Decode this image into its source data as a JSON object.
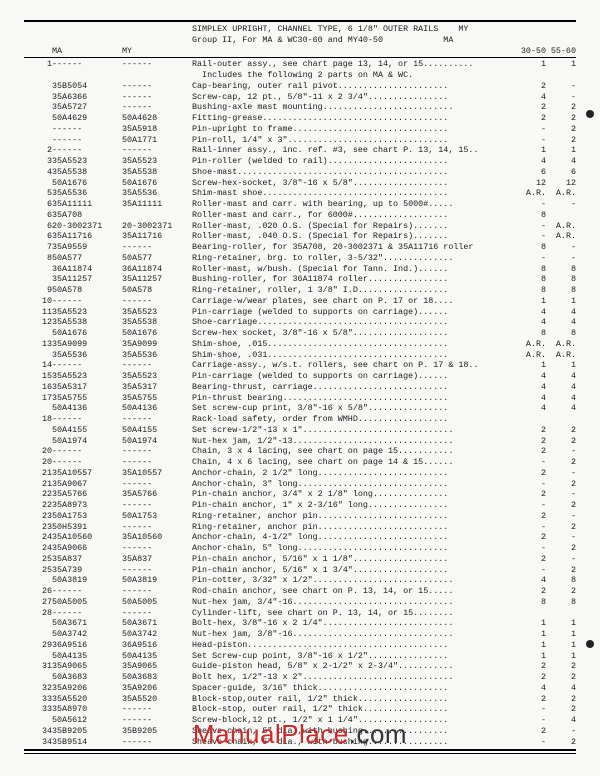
{
  "title_lines": [
    "SIMPLEX UPRIGHT, CHANNEL TYPE, 6 1/8\" OUTER RAILS    MY",
    "Group II, For MA & WC30-60 and MY40-50            MA"
  ],
  "col_header": {
    "ref": "",
    "ma": "MA",
    "my": "MY",
    "desc": "",
    "c1": "MA\n30-50",
    "c2": "MA\n55-60"
  },
  "rows": [
    {
      "ref": "1",
      "ma": "------",
      "my": "------",
      "desc": "Rail-outer assy., see chart page 13, 14, or 15..........",
      "c1": "1",
      "c2": "1"
    },
    {
      "ref": "",
      "ma": "",
      "my": "",
      "desc": "  Includes the following 2 parts on MA & WC.",
      "c1": "",
      "c2": ""
    },
    {
      "ref": "",
      "ma": "35B5054",
      "my": "------",
      "desc": "Cap-bearing, outer rail pivot......................",
      "c1": "2",
      "c2": "-"
    },
    {
      "ref": "",
      "ma": "35A6366",
      "my": "------",
      "desc": "Screw-cap, 12 pt., 5/8\"-11 x 2 3/4\"................",
      "c1": "4",
      "c2": "-"
    },
    {
      "ref": "",
      "ma": "35A5727",
      "my": "------",
      "desc": "Bushing-axle mast mounting..........................",
      "c1": "2",
      "c2": "2"
    },
    {
      "ref": "",
      "ma": "50A4629",
      "my": "50A4628",
      "desc": "Fitting-grease.....................................",
      "c1": "2",
      "c2": "2"
    },
    {
      "ref": "",
      "ma": "------",
      "my": "35A5918",
      "desc": "Pin-upright to frame...............................",
      "c1": "-",
      "c2": "2"
    },
    {
      "ref": "",
      "ma": "------",
      "my": "50A1771",
      "desc": "Pin-roll, 1/4\" x 3\"................................",
      "c1": "-",
      "c2": "2"
    },
    {
      "ref": "2",
      "ma": "------",
      "my": "------",
      "desc": "Rail-inner assy., inc. ref. #3, see chart P. 13, 14, 15..",
      "c1": "1",
      "c2": "1"
    },
    {
      "ref": "3",
      "ma": "35A5523",
      "my": "35A5523",
      "desc": "Pin-roller (welded to rail)........................",
      "c1": "4",
      "c2": "4"
    },
    {
      "ref": "4",
      "ma": "35A5538",
      "my": "35A5538",
      "desc": "Shoe-mast..........................................",
      "c1": "6",
      "c2": "6"
    },
    {
      "ref": "",
      "ma": "50A1676",
      "my": "50A1676",
      "desc": "Screw-hex-socket, 3/8\"-16 x 5/8\"...................",
      "c1": "12",
      "c2": "12"
    },
    {
      "ref": "5",
      "ma": "35A5536",
      "my": "35A5536",
      "desc": "Shim-mast shoe.....................................",
      "c1": "A.R.",
      "c2": "A.R."
    },
    {
      "ref": "6",
      "ma": "35A11111",
      "my": "35A11111",
      "desc": "Roller-mast and carr. with bearing, up to 5000#.....",
      "c1": "-",
      "c2": "-"
    },
    {
      "ref": "6",
      "ma": "35A708",
      "my": "",
      "desc": "Roller-mast and carr., for 6000#...................",
      "c1": "8",
      "c2": ""
    },
    {
      "ref": "6",
      "ma": "20-3002371",
      "my": "20-3002371",
      "desc": "Roller-mast, .020 O.S. (Special for Repairs).......",
      "c1": "-",
      "c2": "A.R."
    },
    {
      "ref": "6",
      "ma": "35A11716",
      "my": "35A11716",
      "desc": "Roller-mast, .040 O.S. (Special for Repairs).......",
      "c1": "-",
      "c2": "A.R."
    },
    {
      "ref": "7",
      "ma": "35A9559",
      "my": "------",
      "desc": "Bearing-roller, for 35A708, 20-3002371 & 35A11716 roller",
      "c1": "8",
      "c2": "-"
    },
    {
      "ref": "8",
      "ma": "50A577",
      "my": "50A577",
      "desc": "Ring-retainer, brg. to roller, 3-5/32\"..............",
      "c1": "-",
      "c2": "-"
    },
    {
      "ref": "",
      "ma": "36A11874",
      "my": "36A11874",
      "desc": "Roller-mast, w/bush. (Special for Tann. Ind.)......",
      "c1": "8",
      "c2": "8"
    },
    {
      "ref": "",
      "ma": "35A11257",
      "my": "35A11257",
      "desc": "Bushing-roller, for 36A11874 roller................",
      "c1": "8",
      "c2": "8"
    },
    {
      "ref": "9",
      "ma": "50A578",
      "my": "50A578",
      "desc": "Ring-retainer, roller, 1 3/8\" I.D..................",
      "c1": "8",
      "c2": "8"
    },
    {
      "ref": "10",
      "ma": "------",
      "my": "------",
      "desc": "Carriage-w/wear plates, see chart on P. 17 or 18....",
      "c1": "1",
      "c2": "1"
    },
    {
      "ref": "11",
      "ma": "35A5523",
      "my": "35A5523",
      "desc": "Pin-carriage (welded to supports on carriage)......",
      "c1": "4",
      "c2": "4"
    },
    {
      "ref": "12",
      "ma": "35A5538",
      "my": "35A5538",
      "desc": "Shoe-carriage......................................",
      "c1": "4",
      "c2": "4"
    },
    {
      "ref": "",
      "ma": "50A1676",
      "my": "50A1676",
      "desc": "Screw-hex socket, 3/8\"-16 x 5/8\"...................",
      "c1": "8",
      "c2": "8"
    },
    {
      "ref": "13",
      "ma": "35A9099",
      "my": "35A9099",
      "desc": "Shim-shoe, .015....................................",
      "c1": "A.R.",
      "c2": "A.R."
    },
    {
      "ref": "",
      "ma": "35A5536",
      "my": "35A5536",
      "desc": "Shim-shoe, .031....................................",
      "c1": "A.R.",
      "c2": "A.R."
    },
    {
      "ref": "14",
      "ma": "------",
      "my": "------",
      "desc": "Carriage-assy., w/s.t. rollers, see chart on P. 17 & 18..",
      "c1": "1",
      "c2": "1"
    },
    {
      "ref": "15",
      "ma": "35A5523",
      "my": "35A5523",
      "desc": "Pin-carriage (welded to supports on carriage)......",
      "c1": "4",
      "c2": "4"
    },
    {
      "ref": "16",
      "ma": "35A5317",
      "my": "35A5317",
      "desc": "Bearing-thrust, carriage...........................",
      "c1": "4",
      "c2": "4"
    },
    {
      "ref": "17",
      "ma": "35A5755",
      "my": "35A5755",
      "desc": "Pin-thrust bearing.................................",
      "c1": "4",
      "c2": "4"
    },
    {
      "ref": "",
      "ma": "50A4136",
      "my": "50A4136",
      "desc": "Set screw-cup print, 3/8\"-16 x 5/8\"................",
      "c1": "4",
      "c2": "4"
    },
    {
      "ref": "18",
      "ma": "------",
      "my": "------",
      "desc": "Rack-load safety, order from WMHD..................",
      "c1": "",
      "c2": ""
    },
    {
      "ref": "",
      "ma": "50A4155",
      "my": "50A4155",
      "desc": "Set screw-1/2\"-13 x 1\"..............................",
      "c1": "2",
      "c2": "2"
    },
    {
      "ref": "",
      "ma": "50A1974",
      "my": "50A1974",
      "desc": "Nut-hex jam, 1/2\"-13................................",
      "c1": "2",
      "c2": "2"
    },
    {
      "ref": "20",
      "ma": "------",
      "my": "------",
      "desc": "Chain, 3 x 4 lacing, see chart on page 15...........",
      "c1": "2",
      "c2": "-"
    },
    {
      "ref": "20",
      "ma": "------",
      "my": "------",
      "desc": "Chain, 4 x 6 lacing, see chart on page 14 & 15......",
      "c1": "-",
      "c2": "2"
    },
    {
      "ref": "21",
      "ma": "35A10557",
      "my": "35A10557",
      "desc": "Anchor-chain, 2 1/2\" long..........................",
      "c1": "2",
      "c2": "-"
    },
    {
      "ref": "21",
      "ma": "35A9067",
      "my": "------",
      "desc": "Anchor-chain, 3\" long..............................",
      "c1": "-",
      "c2": "2"
    },
    {
      "ref": "22",
      "ma": "35A5766",
      "my": "35A5766",
      "desc": "Pin-chain anchor, 3/4\" x 2 1/8\" long...............",
      "c1": "2",
      "c2": "-"
    },
    {
      "ref": "22",
      "ma": "35A8973",
      "my": "------",
      "desc": "Pin-chain anchor, 1\" x 2-3/16\" long................",
      "c1": "-",
      "c2": "2"
    },
    {
      "ref": "23",
      "ma": "50A1753",
      "my": "50A1753",
      "desc": "Ring-retainer, anchor pin..........................",
      "c1": "2",
      "c2": "-"
    },
    {
      "ref": "23",
      "ma": "50H5391",
      "my": "------",
      "desc": "Ring-retainer, anchor pin..........................",
      "c1": "-",
      "c2": "2"
    },
    {
      "ref": "24",
      "ma": "35A10560",
      "my": "35A10560",
      "desc": "Anchor-chain, 4-1/2\" long..........................",
      "c1": "2",
      "c2": "-"
    },
    {
      "ref": "24",
      "ma": "35A9066",
      "my": "------",
      "desc": "Anchor-chain, 5\" long..............................",
      "c1": "-",
      "c2": "2"
    },
    {
      "ref": "25",
      "ma": "35A837",
      "my": "35A837",
      "desc": "Pin-chain anchor, 5/16\" x 1 1/8\"...................",
      "c1": "2",
      "c2": "-"
    },
    {
      "ref": "25",
      "ma": "35A739",
      "my": "------",
      "desc": "Pin-chain anchor, 5/16\" x 1 3/4\"...................",
      "c1": "-",
      "c2": "2"
    },
    {
      "ref": "",
      "ma": "50A3819",
      "my": "50A3819",
      "desc": "Pin-cotter, 3/32\" x 1/2\"............................",
      "c1": "4",
      "c2": "8"
    },
    {
      "ref": "26",
      "ma": "------",
      "my": "------",
      "desc": "Rod-chain anchor, see chart on P. 13, 14, or 15.....",
      "c1": "2",
      "c2": "2"
    },
    {
      "ref": "27",
      "ma": "50A5005",
      "my": "50A5005",
      "desc": "Nut-hex jam, 3/4\"-16................................",
      "c1": "8",
      "c2": "8"
    },
    {
      "ref": "28",
      "ma": "------",
      "my": "------",
      "desc": "Cylinder-lift, see chart on P. 13, 14, or 15........",
      "c1": "",
      "c2": ""
    },
    {
      "ref": "",
      "ma": "50A3671",
      "my": "50A3671",
      "desc": "Bolt-hex, 3/8\"-16 x 2 1/4\"..........................",
      "c1": "1",
      "c2": "1"
    },
    {
      "ref": "",
      "ma": "50A3742",
      "my": "50A3742",
      "desc": "Nut-hex jam, 3/8\"-16................................",
      "c1": "1",
      "c2": "1"
    },
    {
      "ref": "29",
      "ma": "36A9516",
      "my": "36A9516",
      "desc": "Head-piston........................................",
      "c1": "1",
      "c2": "1"
    },
    {
      "ref": "",
      "ma": "50A4135",
      "my": "50A4135",
      "desc": "Set Screw-cup point, 3/8\"-16 x 1/2\"................",
      "c1": "1",
      "c2": "1"
    },
    {
      "ref": "31",
      "ma": "35A9065",
      "my": "35A9065",
      "desc": "Guide-piston head, 5/8\" x 2-1/2\" x 2-3/4\"...........",
      "c1": "2",
      "c2": "2"
    },
    {
      "ref": "",
      "ma": "50A3683",
      "my": "50A3683",
      "desc": "Bolt hex, 1/2\"-13 x 2\"..............................",
      "c1": "2",
      "c2": "2"
    },
    {
      "ref": "32",
      "ma": "35A9206",
      "my": "35A9206",
      "desc": "Spacer-guide, 3/16\" thick..........................",
      "c1": "4",
      "c2": "4"
    },
    {
      "ref": "33",
      "ma": "35A5520",
      "my": "35A5520",
      "desc": "Block-stop,outer rail, 1/2\" thick..................",
      "c1": "2",
      "c2": "2"
    },
    {
      "ref": "33",
      "ma": "35A8970",
      "my": "------",
      "desc": "Block-stop, outer rail, 1/2\" thick.................",
      "c1": "-",
      "c2": "2"
    },
    {
      "ref": "",
      "ma": "50A5612",
      "my": "------",
      "desc": "Screw-block,12 pt., 1/2\" x 1 1/4\"..................",
      "c1": "-",
      "c2": "4"
    },
    {
      "ref": "34",
      "ma": "35B9205",
      "my": "35B9205",
      "desc": "Sheave-chain, 5\" dia.,with bushing.................",
      "c1": "2",
      "c2": "-"
    },
    {
      "ref": "34",
      "ma": "35B9514",
      "my": "------",
      "desc": "Sheave-chain, 5\" dia., with bushing................",
      "c1": "-",
      "c2": "2"
    }
  ],
  "watermark": {
    "brand": "ManualPlace",
    "suffix": ".com",
    "brand_color": "#cc2a2a",
    "suffix_color": "#333333"
  }
}
